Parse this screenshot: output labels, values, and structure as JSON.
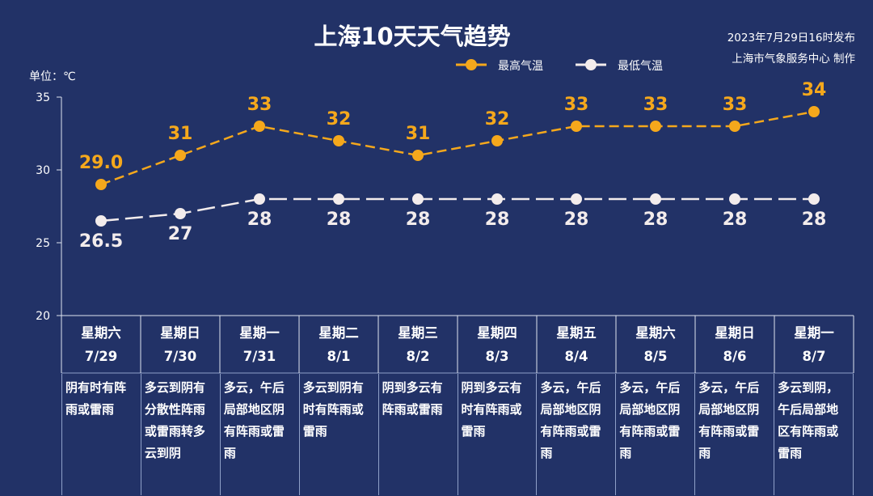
{
  "header": {
    "title": "上海10天天气趋势",
    "issue_time": "2023年7月29日16时发布",
    "issuer": "上海市气象服务中心 制作",
    "unit": "单位：℃"
  },
  "colors": {
    "background": "#223267",
    "high": "#f5a81c",
    "low": "#f3ecec",
    "axis": "#dfe4ef"
  },
  "chart_data": {
    "type": "line",
    "ylim": [
      20,
      35
    ],
    "yticks": [
      20,
      25,
      30,
      35
    ],
    "legend_placement": "top-right",
    "grid": false,
    "categories": [
      "星期六 7/29",
      "星期日 7/30",
      "星期一 7/31",
      "星期二 8/1",
      "星期三 8/2",
      "星期四 8/3",
      "星期五 8/4",
      "星期六 8/5",
      "星期日 8/6",
      "星期一 8/7"
    ],
    "series": [
      {
        "name": "最高气温",
        "values": [
          29.0,
          31,
          33,
          32,
          31,
          32,
          33,
          33,
          33,
          34
        ],
        "labels": [
          "29.0",
          "31",
          "33",
          "32",
          "31",
          "32",
          "33",
          "33",
          "33",
          "34"
        ]
      },
      {
        "name": "最低气温",
        "values": [
          26.5,
          27,
          28,
          28,
          28,
          28,
          28,
          28,
          28,
          28
        ],
        "labels": [
          "26.5",
          "27",
          "28",
          "28",
          "28",
          "28",
          "28",
          "28",
          "28",
          "28"
        ]
      }
    ]
  },
  "days": [
    {
      "weekday": "星期六",
      "date": "7/29",
      "desc": "阴有时有阵雨或雷雨"
    },
    {
      "weekday": "星期日",
      "date": "7/30",
      "desc": "多云到阴有分散性阵雨或雷雨转多云到阴"
    },
    {
      "weekday": "星期一",
      "date": "7/31",
      "desc": "多云，午后局部地区阴有阵雨或雷雨"
    },
    {
      "weekday": "星期二",
      "date": "8/1",
      "desc": "多云到阴有时有阵雨或雷雨"
    },
    {
      "weekday": "星期三",
      "date": "8/2",
      "desc": "阴到多云有阵雨或雷雨"
    },
    {
      "weekday": "星期四",
      "date": "8/3",
      "desc": "阴到多云有时有阵雨或雷雨"
    },
    {
      "weekday": "星期五",
      "date": "8/4",
      "desc": "多云，午后局部地区阴有阵雨或雷雨"
    },
    {
      "weekday": "星期六",
      "date": "8/5",
      "desc": "多云，午后局部地区阴有阵雨或雷雨"
    },
    {
      "weekday": "星期日",
      "date": "8/6",
      "desc": "多云，午后局部地区阴有阵雨或雷雨"
    },
    {
      "weekday": "星期一",
      "date": "8/7",
      "desc": "多云到阴，午后局部地区有阵雨或雷雨"
    }
  ]
}
